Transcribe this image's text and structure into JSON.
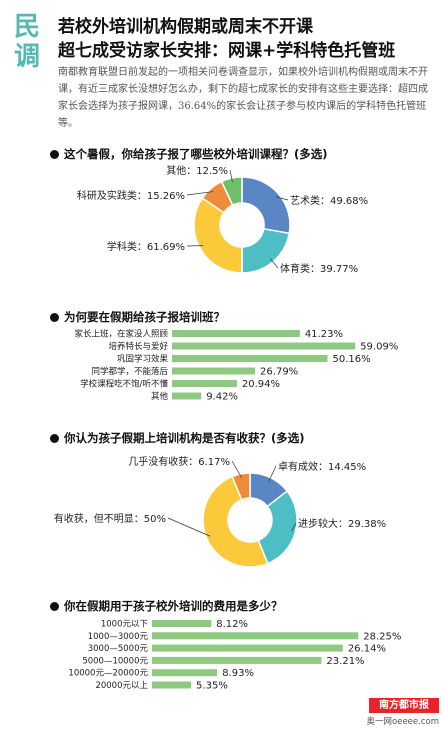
{
  "side_tag": [
    "民",
    "调"
  ],
  "headline": {
    "line1": "若校外培训机构假期或周末不开课",
    "line2": "超七成受访家长安排：网课+学科特色托管班"
  },
  "intro": "南都教育联盟日前发起的一项相关问卷调查显示，如果校外培训机构假期或周末不开课，有近三成家长没想好怎么办，剩下的超七成家长的安排有这些主要选择：超四成家长会选择为孩子报网课，36.64%的家长会让孩子参与校内课后的学科特色托管班等。",
  "footer": {
    "logo": "南方都市报",
    "web": "奥一网oeeee.com"
  },
  "colors": {
    "blue": "#5b86c5",
    "teal": "#4dbfc4",
    "yellow": "#fcc93b",
    "orange": "#ee8c3a",
    "green": "#6fc069",
    "bar": "#8dca7f"
  },
  "chart_data": [
    {
      "type": "pie",
      "title": "这个暑假，你给孩子报了哪些校外培训课程？(多选)",
      "slices": [
        {
          "label": "艺术类：49.68%",
          "value": 49.68,
          "color": "#5b86c5"
        },
        {
          "label": "体育类：39.77%",
          "value": 39.77,
          "color": "#4dbfc4"
        },
        {
          "label": "学科类：61.69%",
          "value": 61.69,
          "color": "#fcc93b"
        },
        {
          "label": "科研及实践类：15.26%",
          "value": 15.26,
          "color": "#ee8c3a"
        },
        {
          "label": "其他：12.5%",
          "value": 12.5,
          "color": "#6fc069"
        }
      ]
    },
    {
      "type": "bar",
      "title": "为何要在假期给孩子报培训班？",
      "categories": [
        "家长上班，在家没人照顾",
        "培养特长与爱好",
        "巩固学习效果",
        "同学都学，不能落后",
        "学校课程吃不饱/听不懂",
        "其他"
      ],
      "values": [
        41.23,
        59.09,
        50.16,
        26.79,
        20.94,
        9.42
      ],
      "labels": [
        "41.23%",
        "59.09%",
        "50.16%",
        "26.79%",
        "20.94%",
        "9.42%"
      ]
    },
    {
      "type": "pie",
      "title": "你认为孩子假期上培训机构是否有收获？(多选)",
      "slices": [
        {
          "label": "卓有成效：14.45%",
          "value": 14.45,
          "color": "#5b86c5"
        },
        {
          "label": "进步较大：29.38%",
          "value": 29.38,
          "color": "#4dbfc4"
        },
        {
          "label": "有收获，但不明显：50%",
          "value": 50,
          "color": "#fcc93b"
        },
        {
          "label": "几乎没有收获：6.17%",
          "value": 6.17,
          "color": "#ee8c3a"
        }
      ]
    },
    {
      "type": "bar",
      "title": "你在假期用于孩子校外培训的费用是多少？",
      "categories": [
        "1000元以下",
        "1000—3000元",
        "3000—5000元",
        "5000—10000元",
        "10000元—20000元",
        "20000元以上"
      ],
      "values": [
        8.12,
        28.25,
        26.14,
        23.21,
        8.93,
        5.35
      ],
      "labels": [
        "8.12%",
        "28.25%",
        "26.14%",
        "23.21%",
        "8.93%",
        "5.35%"
      ]
    }
  ]
}
